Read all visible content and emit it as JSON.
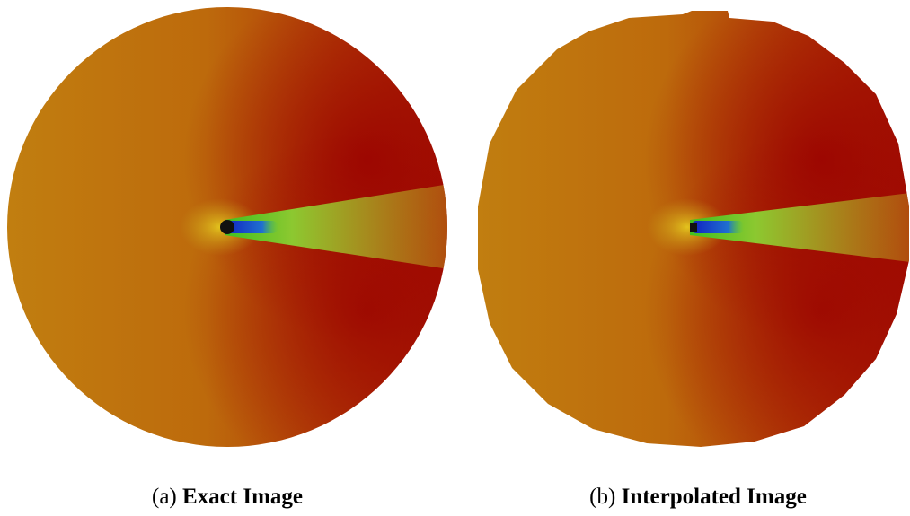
{
  "figures": [
    {
      "label": "(a)",
      "caption": "Exact Image"
    },
    {
      "label": "(b)",
      "caption": "Interpolated Image"
    }
  ]
}
